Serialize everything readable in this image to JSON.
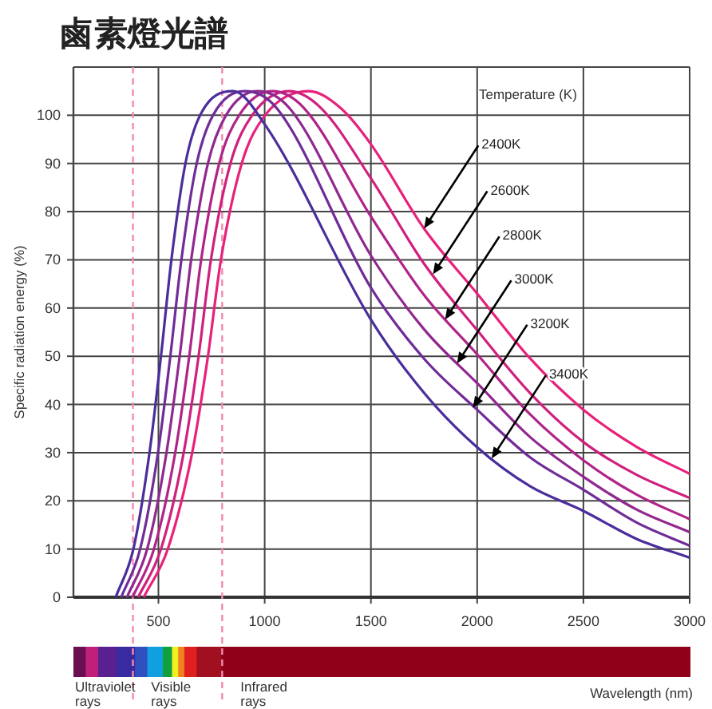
{
  "chart_data": {
    "type": "line",
    "title": "鹵素燈光譜",
    "xlabel": "Wavelength (nm)",
    "ylabel": "Specific radiation energy (%)",
    "legend_title": "Temperature (K)",
    "xlim": [
      100,
      3000
    ],
    "ylim": [
      0,
      110
    ],
    "xticks": [
      500,
      1000,
      1500,
      2000,
      2500,
      3000
    ],
    "yticks": [
      0,
      10,
      20,
      30,
      40,
      50,
      60,
      70,
      80,
      90,
      100
    ],
    "grid": true,
    "series": [
      {
        "color": "#e8217a",
        "x": [
          431,
          544,
          659,
          733,
          794,
          892,
          1002,
          1207,
          1357,
          1500,
          1750,
          2000,
          2250,
          2500,
          2750,
          3000
        ],
        "values": [
          0,
          10,
          30,
          50,
          70,
          90,
          100,
          105,
          101.5,
          94,
          76.5,
          63,
          49.5,
          38.9,
          31.2,
          25.6
        ]
      },
      {
        "color": "#d0207e",
        "x": [
          405,
          512,
          619,
          689,
          747,
          839,
          941,
          1115,
          1265,
          1500,
          1750,
          2000,
          2250,
          2500,
          2750,
          3000
        ],
        "values": [
          0,
          10,
          30,
          50,
          70,
          90,
          100,
          105,
          101.5,
          86.9,
          69.2,
          55.4,
          42.3,
          32.2,
          25.4,
          20.6
        ]
      },
      {
        "color": "#b02488",
        "x": [
          378,
          479,
          579,
          645,
          701,
          786,
          880,
          1035,
          1185,
          1500,
          1750,
          2000,
          2250,
          2500,
          2750,
          3000
        ],
        "values": [
          0,
          10,
          30,
          50,
          70,
          90,
          100,
          105,
          101.5,
          79,
          62.7,
          50.4,
          37.9,
          28.4,
          21.3,
          16.2
        ]
      },
      {
        "color": "#902890",
        "x": [
          352,
          447,
          538,
          600,
          654,
          733,
          818,
          966,
          1116,
          1500,
          1750,
          2000,
          2250,
          2500,
          2750,
          3000
        ],
        "values": [
          0,
          10,
          30,
          50,
          70,
          90,
          100,
          105,
          101.5,
          70.9,
          55.6,
          44.4,
          33.2,
          25,
          18.2,
          13.5
        ]
      },
      {
        "color": "#702c98",
        "x": [
          325,
          414,
          498,
          556,
          608,
          680,
          757,
          906,
          1056,
          1500,
          1750,
          2000,
          2250,
          2500,
          2750,
          3000
        ],
        "values": [
          0,
          10,
          30,
          50,
          70,
          90,
          100,
          105,
          101.5,
          64.2,
          49.5,
          38.9,
          29,
          22.3,
          15.5,
          10.7
        ]
      },
      {
        "color": "#4a2e9c",
        "x": [
          299,
          382,
          458,
          512,
          561,
          627,
          696,
          852,
          1002,
          1500,
          1750,
          2000,
          2250,
          2500,
          2750,
          3000
        ],
        "values": [
          0,
          10,
          30,
          50,
          70,
          90,
          100,
          105,
          98,
          57.6,
          42.4,
          31.1,
          23,
          17.9,
          12.1,
          8.2
        ]
      }
    ],
    "ref_lines": [
      {
        "axis": "x",
        "value": 380,
        "color": "#f08cb0",
        "line_style": "dashed"
      },
      {
        "axis": "x",
        "value": 800,
        "color": "#f08cb0",
        "line_style": "dashed"
      }
    ],
    "annotations": [
      {
        "text": "2400K",
        "x": 1750,
        "y": 76.5
      },
      {
        "text": "2600K",
        "x": 1792,
        "y": 67
      },
      {
        "text": "2800K",
        "x": 1849,
        "y": 57.6
      },
      {
        "text": "3000K",
        "x": 1905,
        "y": 48.5
      },
      {
        "text": "3200K",
        "x": 1980,
        "y": 39.3
      },
      {
        "text": "3400K",
        "x": 2068,
        "y": 28.8
      },
      "Ultraviolet rays",
      "Visible rays",
      "Infrared rays"
    ]
  }
}
